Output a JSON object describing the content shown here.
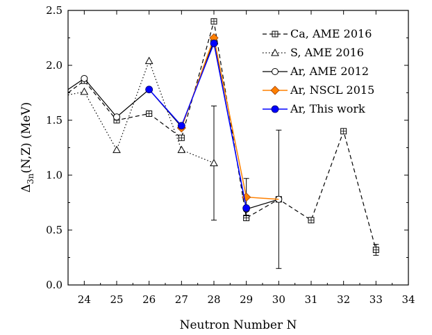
{
  "chart_data": {
    "type": "line",
    "xlabel": "Neutron Number N",
    "ylabel_main": "Δ",
    "ylabel_sub": "3n",
    "ylabel_rest": "(N,Z) (MeV)",
    "xlim": [
      23.5,
      34
    ],
    "ylim": [
      0,
      2.5
    ],
    "xticks": [
      24,
      25,
      26,
      27,
      28,
      29,
      30,
      31,
      32,
      33,
      34
    ],
    "yticks": [
      "0.0",
      "0.5",
      "1.0",
      "1.5",
      "2.0",
      "2.5"
    ],
    "legend_position": "top-right",
    "series": [
      {
        "name": "Ca, AME 2016",
        "color": "#000000",
        "line": "dashed",
        "marker": "square-open",
        "x": [
          23.5,
          24,
          25,
          26,
          27,
          28,
          29,
          30,
          31,
          32,
          33
        ],
        "y": [
          1.75,
          1.86,
          1.5,
          1.56,
          1.34,
          2.4,
          0.61,
          0.78,
          0.59,
          1.4,
          0.32
        ],
        "err": [
          null,
          null,
          null,
          null,
          null,
          null,
          null,
          null,
          null,
          null,
          0.05
        ],
        "marker_shown": [
          false,
          true,
          true,
          true,
          true,
          true,
          true,
          true,
          true,
          true,
          true
        ]
      },
      {
        "name": "S, AME 2016",
        "color": "#000000",
        "line": "dotted",
        "marker": "triangle-open",
        "x": [
          23.5,
          24,
          25,
          26,
          27,
          28
        ],
        "y": [
          1.73,
          1.76,
          1.23,
          2.04,
          1.23,
          1.11
        ],
        "err": [
          null,
          null,
          null,
          null,
          null,
          0.52
        ],
        "marker_shown": [
          false,
          true,
          true,
          true,
          true,
          true
        ]
      },
      {
        "name": "Ar, AME 2012",
        "color": "#000000",
        "line": "solid",
        "marker": "circle-open",
        "x": [
          23.5,
          24,
          25,
          26,
          27,
          28,
          29,
          30
        ],
        "y": [
          1.78,
          1.88,
          1.53,
          1.78,
          1.44,
          2.22,
          0.69,
          0.78
        ],
        "err": [
          null,
          null,
          null,
          null,
          null,
          null,
          null,
          0.63
        ],
        "marker_shown": [
          false,
          true,
          true,
          true,
          true,
          true,
          true,
          true
        ]
      },
      {
        "name": "Ar, NSCL 2015",
        "color": "#ff8000",
        "line": "solid",
        "marker": "diamond-filled",
        "x": [
          27,
          28,
          29,
          30
        ],
        "y": [
          1.43,
          2.25,
          0.8,
          0.78
        ],
        "err": [
          null,
          null,
          0.17,
          null
        ],
        "marker_shown": [
          true,
          true,
          true,
          false
        ]
      },
      {
        "name": "Ar, This work",
        "color": "#0000ff",
        "line": "solid",
        "marker": "circle-filled",
        "x": [
          26,
          27,
          28,
          29
        ],
        "y": [
          1.78,
          1.45,
          2.2,
          0.7
        ],
        "err": [
          null,
          null,
          null,
          null
        ],
        "marker_shown": [
          true,
          true,
          true,
          true
        ]
      }
    ]
  }
}
